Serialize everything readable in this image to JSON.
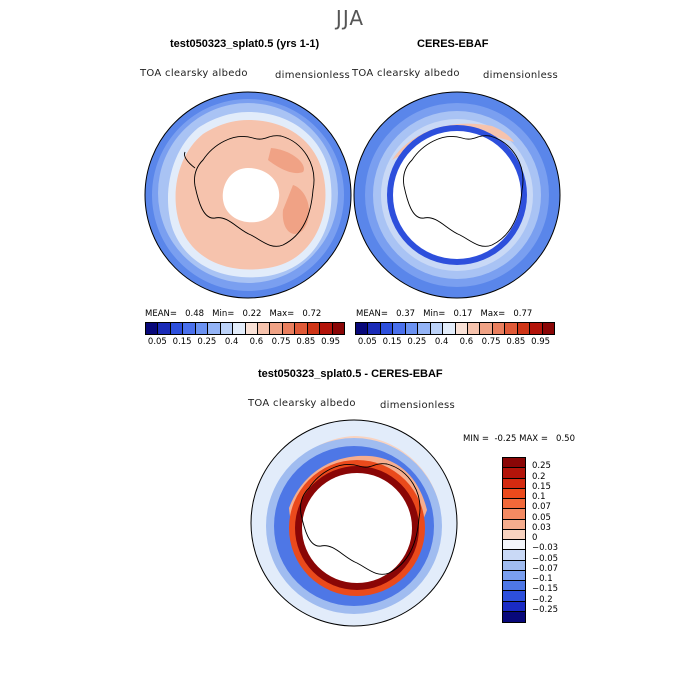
{
  "title": "JJA",
  "panels": {
    "model": {
      "title": "test050323_splat0.5 (yrs 1-1)",
      "variable": "TOA clearsky albedo",
      "units": "dimensionless",
      "stats": {
        "mean_label": "MEAN=",
        "mean": "0.48",
        "min_label": "Min=",
        "min": "0.22",
        "max_label": "Max=",
        "max": "0.72"
      }
    },
    "obs": {
      "title": "CERES-EBAF",
      "variable": "TOA clearsky albedo",
      "units": "dimensionless",
      "stats": {
        "mean_label": "MEAN=",
        "mean": "0.37",
        "min_label": "Min=",
        "min": "0.17",
        "max_label": "Max=",
        "max": "0.77"
      }
    },
    "diff": {
      "title": "test050323_splat0.5 - CERES-EBAF",
      "variable": "TOA clearsky albedo",
      "units": "dimensionless",
      "stats": {
        "min_label": "MIN =",
        "min": "-0.25",
        "max_label": "MAX =",
        "max": "0.50"
      }
    }
  },
  "colorbar_top": {
    "labels": [
      "0.05",
      "0.15",
      "0.25",
      "0.4",
      "0.6",
      "0.75",
      "0.85",
      "0.95"
    ],
    "colors": [
      "#08087a",
      "#1a2bb8",
      "#2d4fdc",
      "#4a70ec",
      "#6b92f2",
      "#93b3f6",
      "#bcd2f8",
      "#e2ecfa",
      "#f9e1d6",
      "#f6c3ad",
      "#f0a285",
      "#ea7f5e",
      "#e05a38",
      "#cf3517",
      "#b3140a",
      "#8a0606"
    ]
  },
  "colorbar_diff": {
    "labels": [
      "0.25",
      "0.2",
      "0.15",
      "0.1",
      "0.07",
      "0.05",
      "0.03",
      "0",
      "−0.03",
      "−0.05",
      "−0.07",
      "−0.1",
      "−0.15",
      "−0.2",
      "−0.25"
    ],
    "colors": [
      "#8a0606",
      "#b3140a",
      "#d42a10",
      "#ec4a1c",
      "#f2693a",
      "#f48a62",
      "#f6ad8e",
      "#f9d3c0",
      "#f4f6fb",
      "#c9d9f6",
      "#a0bcf0",
      "#7a9ff0",
      "#4e77e6",
      "#2d4fdc",
      "#1a2bc4",
      "#08087a"
    ]
  }
}
